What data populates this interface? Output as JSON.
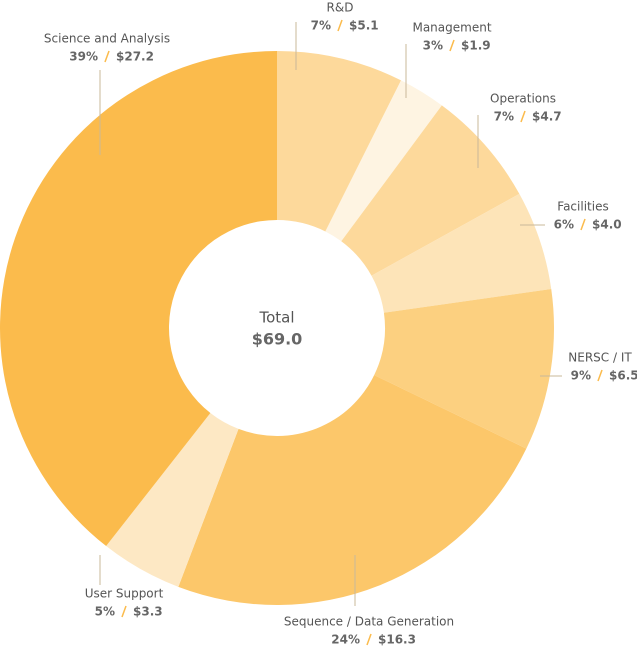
{
  "chart_data": {
    "type": "donut",
    "center_title": "Total",
    "center_value": "$69.0",
    "categories": [
      "R&D",
      "Management",
      "Operations",
      "Facilities",
      "NERSC / IT",
      "Sequence / Data Generation",
      "User Support",
      "Science and Analysis"
    ],
    "values": [
      5.1,
      1.9,
      4.7,
      4.0,
      6.5,
      16.3,
      3.3,
      27.2
    ],
    "value_labels": [
      "$5.1",
      "$1.9",
      "$4.7",
      "$4.0",
      "$6.5",
      "$16.3",
      "$3.3",
      "$27.2"
    ],
    "percents": [
      7,
      3,
      7,
      6,
      9,
      24,
      5,
      39
    ],
    "percent_labels": [
      "7%",
      "3%",
      "7%",
      "6%",
      "9%",
      "24%",
      "5%",
      "39%"
    ],
    "colors": [
      "#fdd99b",
      "#fef4e2",
      "#fdd99b",
      "#fde4b8",
      "#fcd080",
      "#fcc76a",
      "#fde8c4",
      "#fbbb4c"
    ]
  }
}
